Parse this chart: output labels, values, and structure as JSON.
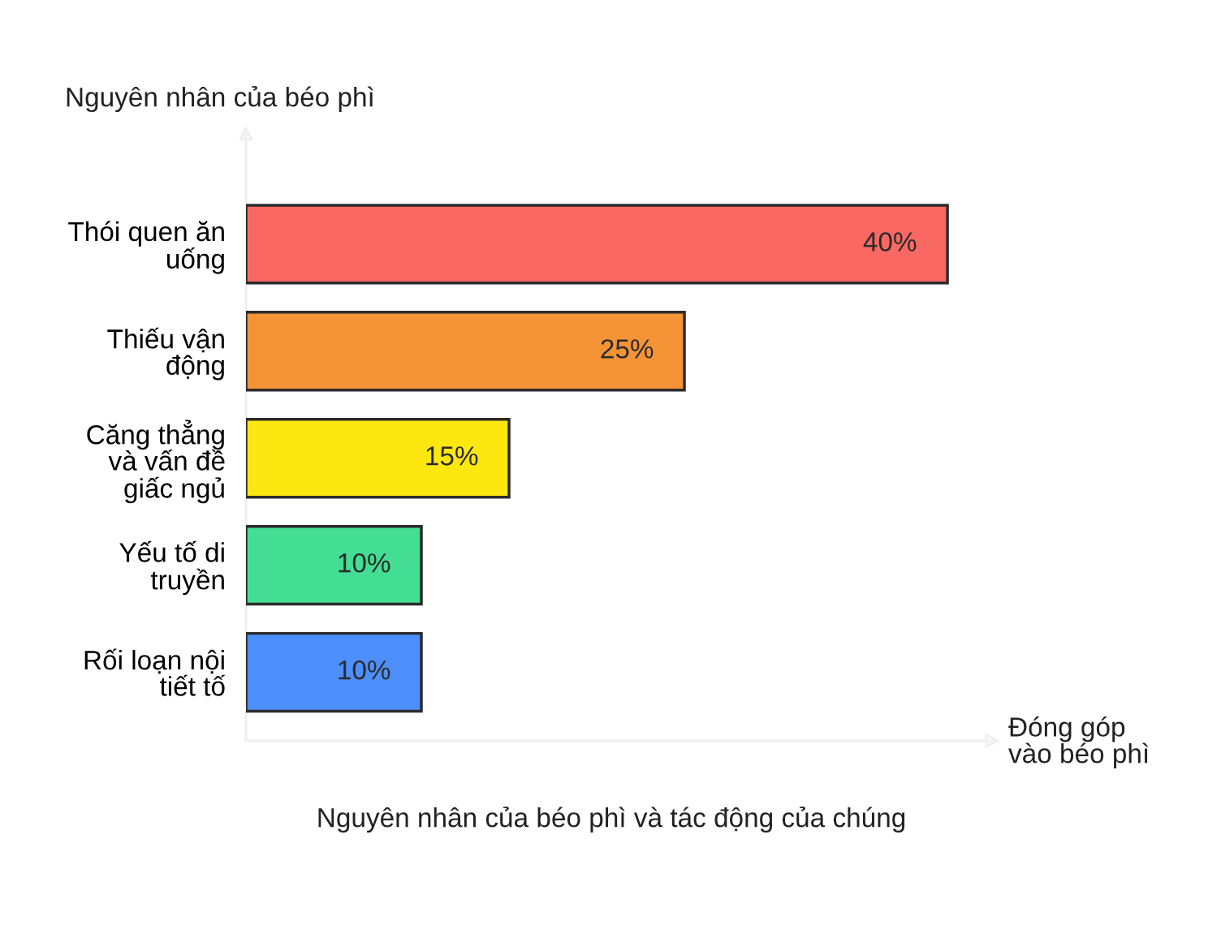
{
  "chart_data": {
    "type": "bar",
    "orientation": "horizontal",
    "title": "Nguyên nhân của béo phì và tác động của chúng",
    "xlabel": "Đóng góp\nvào béo phì",
    "ylabel": "Nguyên nhân của béo phì",
    "categories": [
      "Thói quen ăn\nuống",
      "Thiếu vận\nđộng",
      "Căng thẳng\nvà vấn đề\ngiấc ngủ",
      "Yếu tố di\ntruyền",
      "Rối loạn nội\ntiết tố"
    ],
    "values": [
      40,
      25,
      15,
      10,
      10
    ],
    "value_labels": [
      "40%",
      "25%",
      "15%",
      "10%",
      "10%"
    ],
    "colors": [
      "#f96863",
      "#f59437",
      "#fde711",
      "#43dd93",
      "#4d8ffa"
    ],
    "tick_labels": "y",
    "grid": false,
    "legend": false
  }
}
